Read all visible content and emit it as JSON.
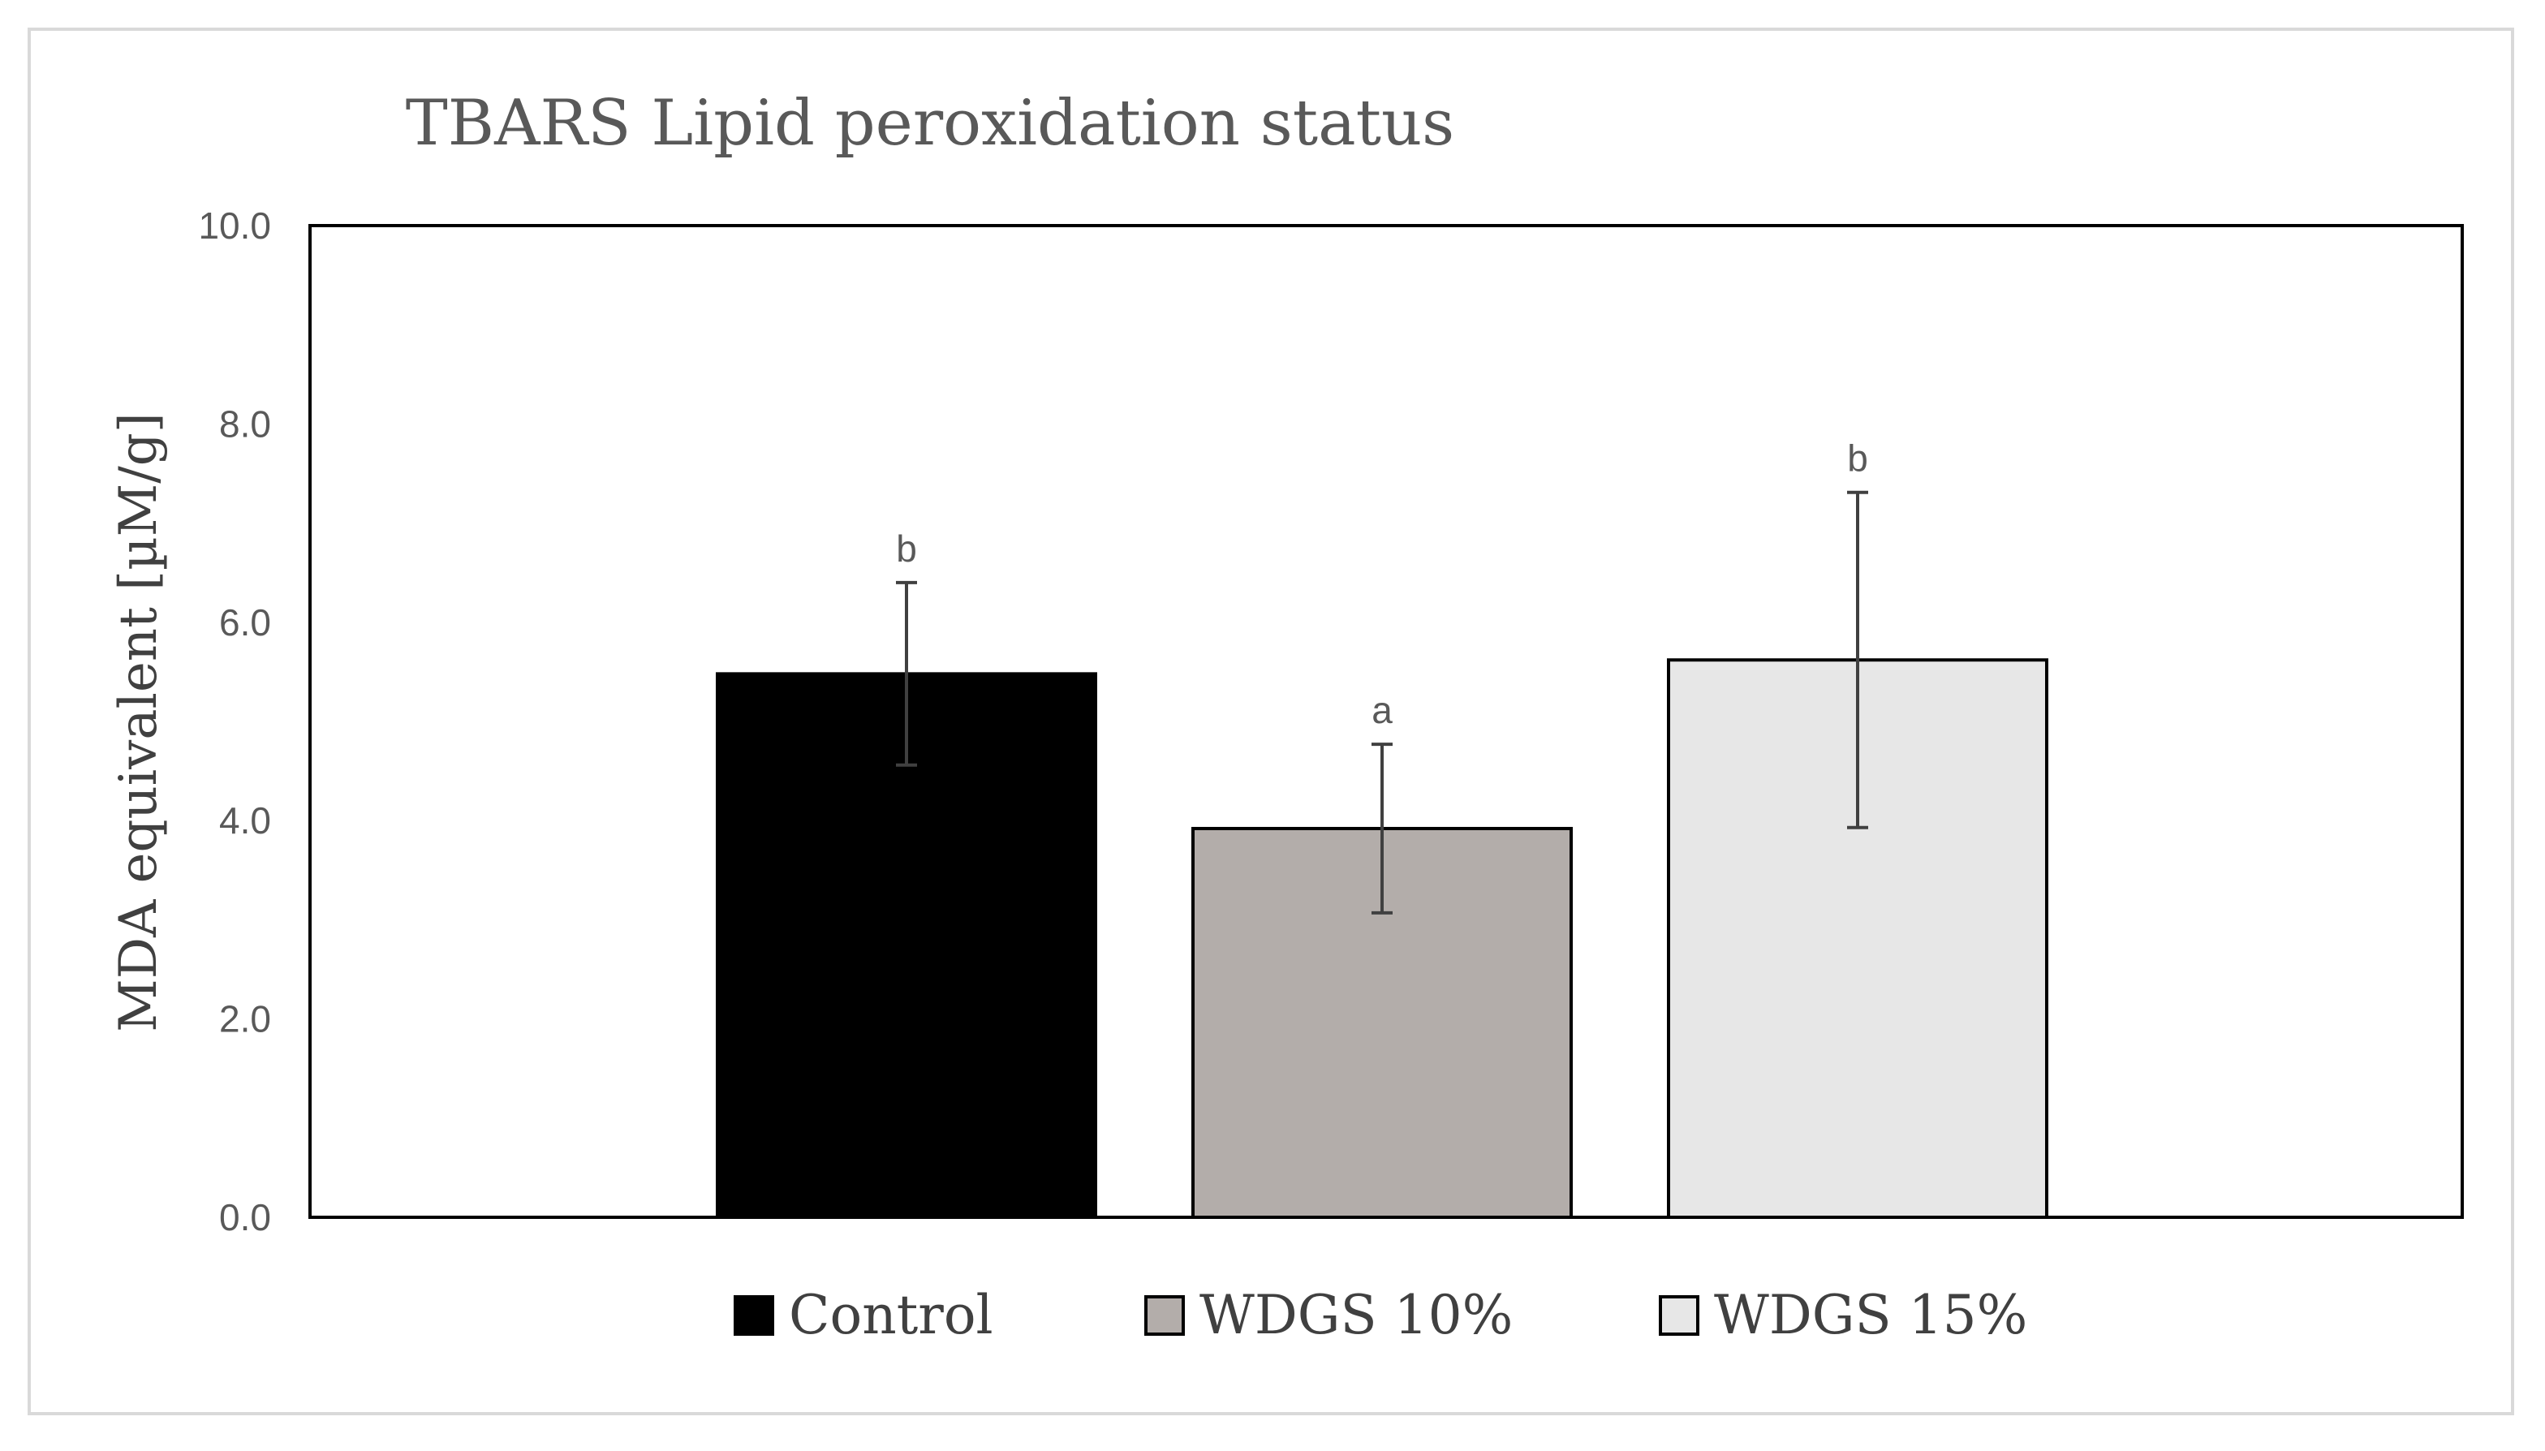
{
  "chart_data": {
    "type": "bar",
    "title": "TBARS Lipid  peroxidation status",
    "ylabel": "MDA equivalent [µM/g]",
    "xlabel": "",
    "ylim": [
      0,
      10
    ],
    "yticks": [
      "0.0",
      "2.0",
      "4.0",
      "6.0",
      "8.0",
      "10.0"
    ],
    "grid": false,
    "legend_position": "bottom",
    "categories": [
      "Control",
      "WDGS 10%",
      "WDGS 15%"
    ],
    "values": [
      5.48,
      3.92,
      5.62
    ],
    "errors": [
      0.92,
      0.85,
      1.69
    ],
    "significance": [
      "b",
      "a",
      "b"
    ],
    "colors": [
      "#000000",
      "#b3adaa",
      "#e7e7e7"
    ]
  }
}
